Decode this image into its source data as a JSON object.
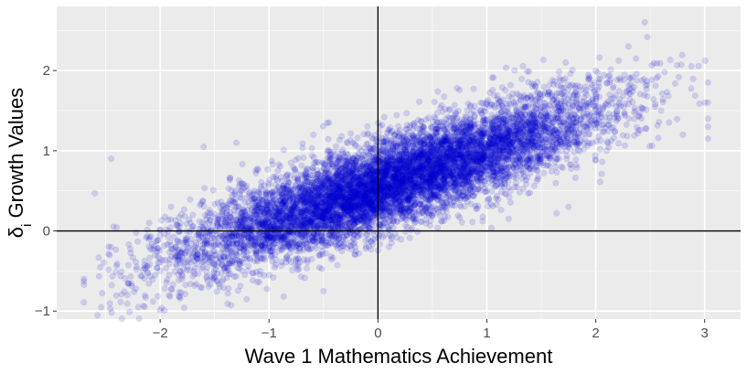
{
  "chart_data": {
    "type": "scatter",
    "xlabel": "Wave 1 Mathematics Achievement",
    "ylabel": "δ",
    "ylabel_subscript": "i",
    "ylabel_rest": " Growth Values",
    "xlim": [
      -2.95,
      3.33
    ],
    "ylim": [
      -1.1,
      2.8
    ],
    "x_ticks": [
      -2,
      -1,
      0,
      1,
      2,
      3
    ],
    "x_tick_labels": [
      "−2",
      "−1",
      "0",
      "1",
      "2",
      "3"
    ],
    "y_ticks": [
      -1,
      0,
      1,
      2
    ],
    "y_tick_labels": [
      "−1",
      "0",
      "1",
      "2"
    ],
    "reference_lines": {
      "x": 0,
      "y": 0
    },
    "grid": true,
    "point_color": "#0000cd",
    "point_alpha": 0.13,
    "panel_background": "#ebebeb",
    "points_summary": {
      "n": 9000,
      "x_range": [
        -2.7,
        3.03
      ],
      "trend_intercept": 0.55,
      "trend_slope": 0.45,
      "residual_sd": 0.28
    },
    "points": [
      [
        -2.6,
        0.47
      ],
      [
        -2.45,
        -0.2
      ],
      [
        -2.45,
        0.9
      ],
      [
        -2.3,
        -0.8
      ],
      [
        -2.2,
        -0.95
      ],
      [
        -2.1,
        0.1
      ],
      [
        -2.0,
        -0.5
      ],
      [
        -1.9,
        0.3
      ],
      [
        -1.8,
        -0.6
      ],
      [
        -1.6,
        1.05
      ],
      [
        -1.5,
        -0.3
      ],
      [
        -1.3,
        1.1
      ],
      [
        -1.2,
        0.5
      ],
      [
        -1.0,
        -0.55
      ],
      [
        -0.8,
        0.85
      ],
      [
        -0.5,
        -0.75
      ],
      [
        -0.45,
        1.35
      ],
      [
        -0.3,
        0.4
      ],
      [
        0.0,
        0.6
      ],
      [
        0.1,
        -0.2
      ],
      [
        0.2,
        1.0
      ],
      [
        0.5,
        0.8
      ],
      [
        0.8,
        1.3
      ],
      [
        1.0,
        0.5
      ],
      [
        1.2,
        0.15
      ],
      [
        1.3,
        1.4
      ],
      [
        1.5,
        0.9
      ],
      [
        1.75,
        0.3
      ],
      [
        1.9,
        1.3
      ],
      [
        2.0,
        2.0
      ],
      [
        2.1,
        1.0
      ],
      [
        2.3,
        2.3
      ],
      [
        2.45,
        2.6
      ],
      [
        2.6,
        1.5
      ],
      [
        2.8,
        1.2
      ],
      [
        3.03,
        1.85
      ],
      [
        3.03,
        1.6
      ],
      [
        3.03,
        1.4
      ],
      [
        3.03,
        1.3
      ],
      [
        3.03,
        1.15
      ]
    ]
  }
}
